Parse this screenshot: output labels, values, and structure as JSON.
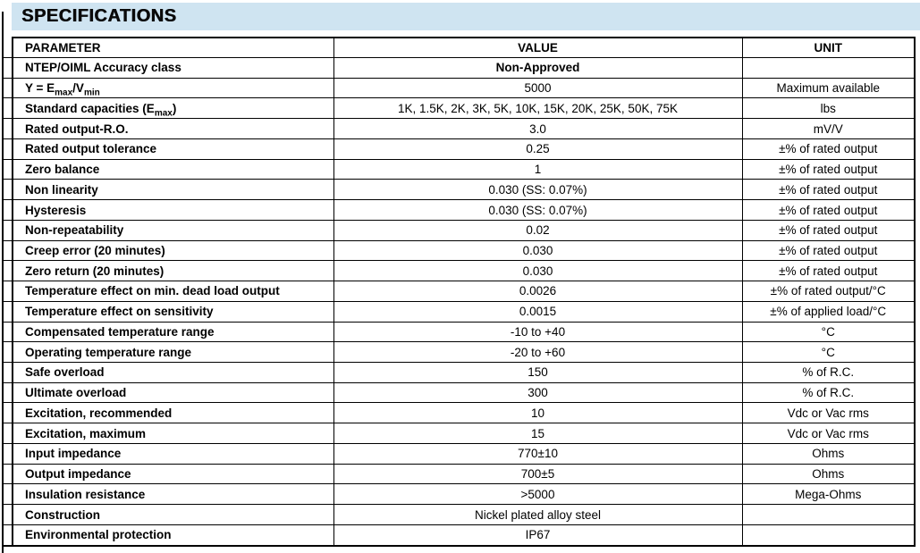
{
  "header": {
    "title": "SPECIFICATIONS",
    "bar_color": "#cfe4f1"
  },
  "colors": {
    "border": "#000000",
    "text": "#000000",
    "background": "#ffffff"
  },
  "table": {
    "columns": {
      "parameter": "PARAMETER",
      "value": "VALUE",
      "unit": "UNIT"
    },
    "rows": [
      {
        "parameter": "NTEP/OIML Accuracy class",
        "value": "Non-Approved",
        "value_bold": true,
        "unit": ""
      },
      {
        "parameter": [
          {
            "t": "Y = E"
          },
          {
            "t": "max",
            "sub": true
          },
          {
            "t": "/V"
          },
          {
            "t": "min",
            "sub": true
          }
        ],
        "value": "5000",
        "unit": "Maximum available"
      },
      {
        "parameter": [
          {
            "t": "Standard capacities (E"
          },
          {
            "t": "max",
            "sub": true
          },
          {
            "t": ")"
          }
        ],
        "value": "1K, 1.5K, 2K, 3K, 5K, 10K, 15K, 20K, 25K, 50K, 75K",
        "unit": "lbs"
      },
      {
        "parameter": "Rated output-R.O.",
        "value": "3.0",
        "unit": "mV/V"
      },
      {
        "parameter": "Rated output tolerance",
        "value": "0.25",
        "unit": "±% of rated output"
      },
      {
        "parameter": "Zero balance",
        "value": "1",
        "unit": "±% of rated output"
      },
      {
        "parameter": "Non linearity",
        "value": "0.030 (SS: 0.07%)",
        "unit": "±% of rated output"
      },
      {
        "parameter": "Hysteresis",
        "value": "0.030 (SS: 0.07%)",
        "unit": "±% of rated output"
      },
      {
        "parameter": "Non-repeatability",
        "value": "0.02",
        "unit": "±% of rated output"
      },
      {
        "parameter": "Creep error (20 minutes)",
        "value": "0.030",
        "unit": "±% of rated output"
      },
      {
        "parameter": "Zero return (20 minutes)",
        "value": "0.030",
        "unit": "±% of rated output"
      },
      {
        "parameter": "Temperature effect on min. dead load output",
        "value": "0.0026",
        "unit": "±% of rated output/°C"
      },
      {
        "parameter": "Temperature effect on sensitivity",
        "value": "0.0015",
        "unit": "±% of applied load/°C"
      },
      {
        "parameter": "Compensated temperature range",
        "value": "-10 to +40",
        "unit": "°C"
      },
      {
        "parameter": "Operating temperature range",
        "value": "-20 to +60",
        "unit": "°C"
      },
      {
        "parameter": "Safe overload",
        "value": "150",
        "unit": "% of R.C."
      },
      {
        "parameter": "Ultimate overload",
        "value": "300",
        "unit": "% of R.C."
      },
      {
        "parameter": "Excitation, recommended",
        "value": "10",
        "unit": "Vdc or Vac rms"
      },
      {
        "parameter": "Excitation, maximum",
        "value": "15",
        "unit": "Vdc or Vac rms"
      },
      {
        "parameter": "Input impedance",
        "value": "770±10",
        "unit": "Ohms"
      },
      {
        "parameter": "Output impedance",
        "value": "700±5",
        "unit": "Ohms"
      },
      {
        "parameter": "Insulation resistance",
        "value": ">5000",
        "unit": "Mega-Ohms"
      },
      {
        "parameter": "Construction",
        "value": "Nickel plated alloy steel",
        "unit": ""
      },
      {
        "parameter": "Environmental protection",
        "value": "IP67",
        "unit": ""
      }
    ]
  }
}
